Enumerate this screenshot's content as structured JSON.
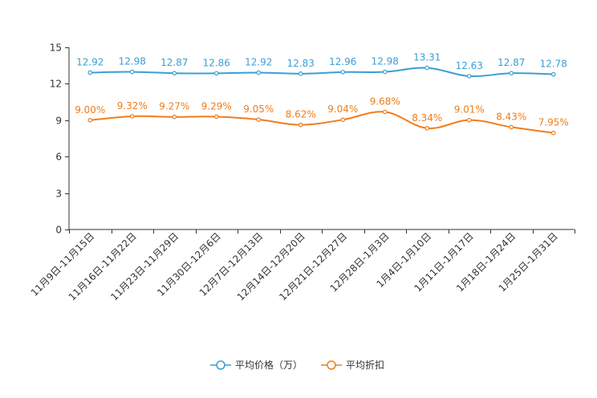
{
  "chart_data": {
    "type": "line",
    "categories": [
      "11月9日-11月15日",
      "11月16日-11月22日",
      "11月23日-11月29日",
      "11月30日-12月6日",
      "12月7日-12月13日",
      "12月14日-12月20日",
      "12月21日-12月27日",
      "12月28日-1月3日",
      "1月4日-1月10日",
      "1月11日-1月17日",
      "1月18日-1月24日",
      "1月25日-1月31日"
    ],
    "ylim": [
      0,
      15
    ],
    "yticks": [
      0,
      3,
      6,
      9,
      12,
      15
    ],
    "series": [
      {
        "name": "平均价格（万）",
        "color": "#3a9fd6",
        "values": [
          12.92,
          12.98,
          12.87,
          12.86,
          12.92,
          12.83,
          12.96,
          12.98,
          13.31,
          12.63,
          12.87,
          12.78
        ],
        "labels": [
          "12.92",
          "12.98",
          "12.87",
          "12.86",
          "12.92",
          "12.83",
          "12.96",
          "12.98",
          "13.31",
          "12.63",
          "12.87",
          "12.78"
        ]
      },
      {
        "name": "平均折扣",
        "color": "#f07d1a",
        "values": [
          9.0,
          9.32,
          9.27,
          9.29,
          9.05,
          8.62,
          9.04,
          9.68,
          8.34,
          9.01,
          8.43,
          7.95
        ],
        "labels": [
          "9.00%",
          "9.32%",
          "9.27%",
          "9.29%",
          "9.05%",
          "8.62%",
          "9.04%",
          "9.68%",
          "8.34%",
          "9.01%",
          "8.43%",
          "7.95%"
        ]
      }
    ]
  }
}
